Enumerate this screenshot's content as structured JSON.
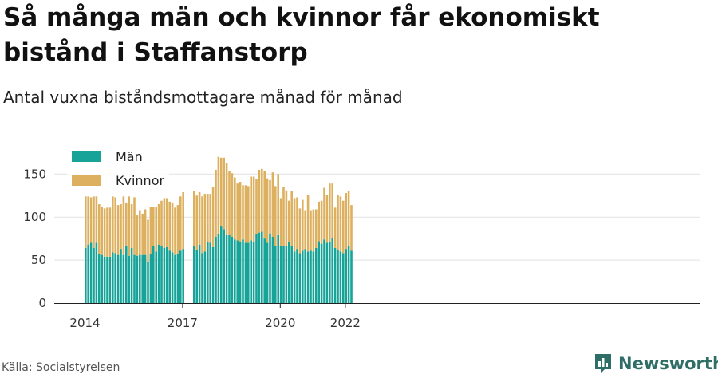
{
  "title": "Så många män och kvinnor får ekonomiskt bistånd i Staffanstorp",
  "subtitle": "Antal vuxna biståndsmottagare månad för månad",
  "source": "Källa: Socialstyrelsen",
  "brand": "Newsworthy",
  "colors": {
    "man": "#17a398",
    "kvinnor": "#dcb05f",
    "grid": "#e2e2e2",
    "axis": "#222222"
  },
  "chart_data": {
    "type": "bar",
    "stacked": true,
    "x_start": "2014-01",
    "x_ticks": [
      "2014",
      "2017",
      "2020",
      "2022"
    ],
    "y_ticks": [
      "0",
      "50",
      "100",
      "150"
    ],
    "ylim": [
      0,
      175
    ],
    "grid": true,
    "legend_position": "top-left",
    "series": [
      {
        "name": "Män",
        "color": "#17a398",
        "values": [
          64,
          68,
          70,
          64,
          70,
          57,
          56,
          54,
          54,
          54,
          59,
          58,
          56,
          63,
          56,
          67,
          55,
          64,
          56,
          55,
          56,
          56,
          56,
          48,
          57,
          66,
          60,
          68,
          66,
          64,
          65,
          61,
          59,
          56,
          57,
          61,
          63,
          null,
          null,
          null,
          66,
          62,
          68,
          58,
          60,
          71,
          70,
          65,
          77,
          80,
          89,
          86,
          79,
          79,
          77,
          74,
          73,
          71,
          74,
          70,
          70,
          73,
          71,
          80,
          82,
          83,
          75,
          70,
          81,
          77,
          66,
          79,
          66,
          66,
          66,
          71,
          66,
          60,
          63,
          58,
          61,
          63,
          60,
          61,
          60,
          64,
          72,
          69,
          74,
          70,
          71,
          76,
          64,
          62,
          60,
          58,
          63,
          66,
          61
        ]
      },
      {
        "name": "Kvinnor",
        "color": "#dcb05f",
        "values": [
          60,
          56,
          53,
          60,
          54,
          58,
          56,
          56,
          57,
          57,
          65,
          65,
          58,
          52,
          68,
          50,
          69,
          51,
          67,
          47,
          52,
          48,
          53,
          49,
          55,
          46,
          52,
          47,
          53,
          58,
          57,
          57,
          58,
          55,
          57,
          63,
          66,
          null,
          null,
          null,
          64,
          63,
          61,
          66,
          67,
          56,
          57,
          70,
          78,
          90,
          80,
          83,
          84,
          75,
          74,
          72,
          66,
          70,
          63,
          67,
          66,
          74,
          76,
          64,
          73,
          73,
          79,
          75,
          62,
          75,
          70,
          71,
          56,
          69,
          65,
          48,
          64,
          62,
          60,
          52,
          59,
          45,
          66,
          47,
          49,
          45,
          46,
          50,
          60,
          56,
          68,
          63,
          47,
          64,
          64,
          61,
          65,
          64,
          53
        ]
      }
    ]
  }
}
